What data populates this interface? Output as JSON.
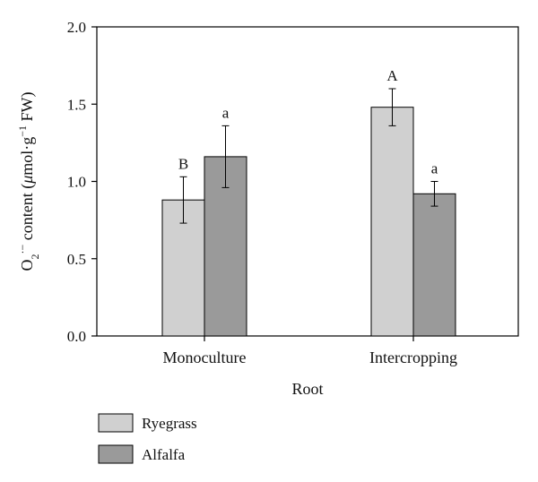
{
  "chart_data": {
    "type": "bar",
    "categories": [
      "Monoculture",
      "Intercropping"
    ],
    "series": [
      {
        "name": "Ryegrass",
        "color": "#d0d0d0",
        "values": [
          0.88,
          1.48
        ],
        "errors": [
          0.15,
          0.12
        ],
        "labels": [
          "B",
          "A"
        ]
      },
      {
        "name": "Alfalfa",
        "color": "#9a9a9a",
        "values": [
          1.16,
          0.92
        ],
        "errors": [
          0.2,
          0.08
        ],
        "labels": [
          "a",
          "a"
        ]
      }
    ],
    "xlabel": "Root",
    "ylabel": {
      "prefix": "O",
      "sub": "2",
      "sup": "·−",
      "middle": " content (",
      "mu": "μ",
      "unit": "mol·g",
      "unit_sup": "−1",
      "suffix": " FW)"
    },
    "ylim": [
      0,
      2.0
    ],
    "yticks": [
      0.0,
      0.5,
      1.0,
      1.5,
      2.0
    ],
    "ytick_labels": [
      "0.0",
      "0.5",
      "1.0",
      "1.5",
      "2.0"
    ],
    "grid": false,
    "legend_position": "bottom-left"
  }
}
